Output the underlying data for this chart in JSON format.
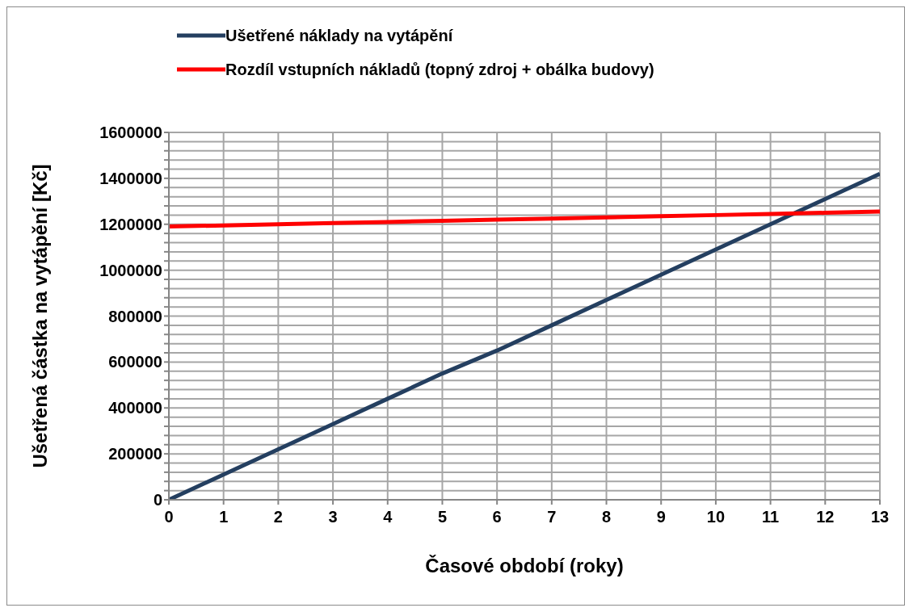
{
  "chart_data": {
    "type": "line",
    "xlabel": "Časové období (roky)",
    "ylabel": "Ušetřená částka na vytápění [Kč]",
    "x": [
      0,
      1,
      2,
      3,
      4,
      5,
      6,
      7,
      8,
      9,
      10,
      11,
      12,
      13
    ],
    "series": [
      {
        "name": "Ušetřené náklady na vytápění",
        "color": "#243f60",
        "values": [
          0,
          110000,
          220000,
          330000,
          440000,
          550000,
          650000,
          760000,
          870000,
          980000,
          1090000,
          1200000,
          1310000,
          1420000
        ]
      },
      {
        "name": "Rozdíl vstupních nákladů (topný zdroj + obálka budovy)",
        "color": "#ff0000",
        "values": [
          1190000,
          1195000,
          1200000,
          1205000,
          1210000,
          1215000,
          1220000,
          1225000,
          1230000,
          1235000,
          1240000,
          1245000,
          1250000,
          1255000
        ]
      }
    ],
    "xlim": [
      0,
      13
    ],
    "xticks": [
      0,
      1,
      2,
      3,
      4,
      5,
      6,
      7,
      8,
      9,
      10,
      11,
      12,
      13
    ],
    "ylim": [
      0,
      1600000
    ],
    "yticks": [
      0,
      {
        "value": 40000,
        "label": null
      },
      {
        "value": 80000,
        "label": null
      },
      {
        "value": 120000,
        "label": null
      },
      {
        "value": 160000,
        "label": null
      },
      200000,
      {
        "value": 240000,
        "label": null
      },
      {
        "value": 280000,
        "label": null
      },
      {
        "value": 320000,
        "label": null
      },
      {
        "value": 360000,
        "label": null
      },
      400000,
      {
        "value": 440000,
        "label": null
      },
      {
        "value": 480000,
        "label": null
      },
      {
        "value": 520000,
        "label": null
      },
      {
        "value": 560000,
        "label": null
      },
      600000,
      {
        "value": 640000,
        "label": null
      },
      {
        "value": 680000,
        "label": null
      },
      {
        "value": 720000,
        "label": null
      },
      {
        "value": 760000,
        "label": null
      },
      800000,
      {
        "value": 840000,
        "label": null
      },
      {
        "value": 880000,
        "label": null
      },
      {
        "value": 920000,
        "label": null
      },
      {
        "value": 960000,
        "label": null
      },
      1000000,
      {
        "value": 1040000,
        "label": null
      },
      {
        "value": 1080000,
        "label": null
      },
      {
        "value": 1120000,
        "label": null
      },
      {
        "value": 1160000,
        "label": null
      },
      1200000,
      {
        "value": 1240000,
        "label": null
      },
      {
        "value": 1280000,
        "label": null
      },
      {
        "value": 1320000,
        "label": null
      },
      {
        "value": 1360000,
        "label": null
      },
      1400000,
      {
        "value": 1440000,
        "label": null
      },
      {
        "value": 1480000,
        "label": null
      },
      {
        "value": 1520000,
        "label": null
      },
      {
        "value": 1560000,
        "label": null
      },
      1600000
    ],
    "grid": true,
    "legend": "top",
    "marker": "none",
    "line_style": "solid"
  }
}
